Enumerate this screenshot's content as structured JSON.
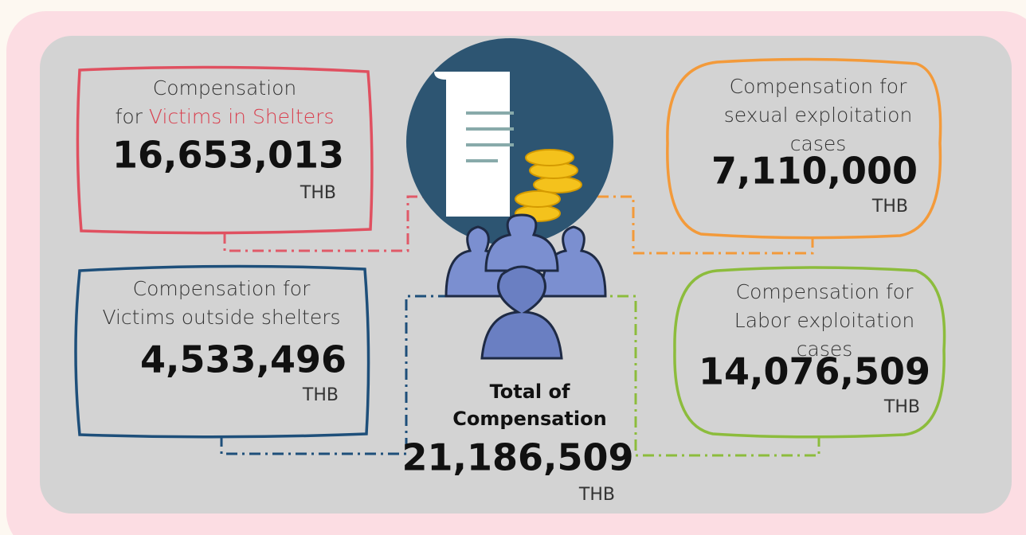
{
  "boxes": [
    {
      "label": [
        "Compensation",
        "for"
      ],
      "highlight": "Victims in Shelters",
      "amount": "16,653,013",
      "unit": "THB"
    },
    {
      "label": [
        "Compensation for"
      ],
      "highlight": "Victims outside shelters",
      "amount": "4,533,496",
      "unit": "THB"
    },
    {
      "label": [
        "Compensation for",
        "sexual exploitation",
        "cases"
      ],
      "amount": "7,110,000",
      "unit": "THB"
    },
    {
      "label": [
        "Compensation for",
        "Labor exploitation",
        "cases"
      ],
      "amount": "14,076,509",
      "unit": "THB"
    }
  ],
  "total": {
    "label": [
      "Total of",
      "Compensation"
    ],
    "amount": "21,186,509",
    "unit": "THB"
  }
}
